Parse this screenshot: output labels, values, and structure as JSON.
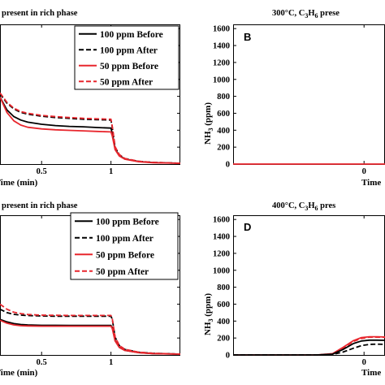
{
  "chart_data": [
    {
      "panel": "top-left",
      "type": "line",
      "title": "present in rich phase",
      "xlabel": "Time (min)",
      "x_ticks": [
        "0.5",
        "1"
      ],
      "xlim": [
        0.2,
        1.5
      ],
      "ylim": [
        0,
        1650
      ],
      "legend": {
        "position": "top-right"
      },
      "series": [
        {
          "name": "100 ppm Before",
          "color": "#000000",
          "dash": "solid",
          "x": [
            0.2,
            0.25,
            0.3,
            0.35,
            0.4,
            0.5,
            0.6,
            0.7,
            0.8,
            0.9,
            1.0,
            1.01,
            1.03,
            1.06,
            1.1,
            1.2,
            1.3,
            1.5
          ],
          "y": [
            790,
            640,
            560,
            520,
            495,
            470,
            455,
            445,
            440,
            432,
            425,
            360,
            180,
            100,
            60,
            30,
            18,
            10
          ]
        },
        {
          "name": "100 ppm After",
          "color": "#000000",
          "dash": "dashed",
          "x": [
            0.2,
            0.25,
            0.3,
            0.35,
            0.4,
            0.5,
            0.6,
            0.7,
            0.8,
            0.9,
            1.0,
            1.01,
            1.03,
            1.06,
            1.1,
            1.2,
            1.3,
            1.5
          ],
          "y": [
            830,
            720,
            650,
            610,
            590,
            565,
            550,
            540,
            530,
            525,
            520,
            430,
            200,
            110,
            65,
            32,
            20,
            10
          ]
        },
        {
          "name": "50 ppm Before",
          "color": "#e8262d",
          "dash": "solid",
          "x": [
            0.2,
            0.25,
            0.3,
            0.35,
            0.4,
            0.5,
            0.6,
            0.7,
            0.8,
            0.9,
            1.0,
            1.01,
            1.03,
            1.06,
            1.1,
            1.2,
            1.3,
            1.5
          ],
          "y": [
            790,
            610,
            510,
            460,
            435,
            415,
            405,
            398,
            392,
            386,
            380,
            330,
            170,
            95,
            58,
            28,
            16,
            10
          ]
        },
        {
          "name": "50 ppm After",
          "color": "#e8262d",
          "dash": "dashed",
          "x": [
            0.2,
            0.25,
            0.3,
            0.35,
            0.4,
            0.5,
            0.6,
            0.7,
            0.8,
            0.9,
            1.0,
            1.01,
            1.03,
            1.06,
            1.1,
            1.2,
            1.3,
            1.5
          ],
          "y": [
            840,
            730,
            660,
            620,
            600,
            575,
            560,
            550,
            540,
            534,
            530,
            440,
            205,
            112,
            66,
            33,
            20,
            10
          ]
        }
      ]
    },
    {
      "panel": "top-right",
      "type": "line",
      "title": "300°C, C3H6 prese",
      "title_parts": [
        "300°C, C",
        "3",
        "H",
        "6",
        " prese"
      ],
      "letter": "B",
      "ylabel": "NH3 (ppm)",
      "ylabel_parts": [
        "NH",
        "3",
        " (ppm)"
      ],
      "xlabel": "Time",
      "x_ticks": [
        "0"
      ],
      "y_ticks": [
        "0",
        "200",
        "400",
        "600",
        "800",
        "1000",
        "1200",
        "1400",
        "1600"
      ],
      "xlim": [
        -0.5,
        0.08
      ],
      "ylim": [
        0,
        1650
      ],
      "series": [
        {
          "color": "#e8262d",
          "dash": "solid",
          "x": [
            -0.5,
            0.08
          ],
          "y": [
            0,
            0
          ]
        }
      ]
    },
    {
      "panel": "bottom-left",
      "type": "line",
      "title": "present in rich phase",
      "xlabel": "Time (min)",
      "x_ticks": [
        "0.5",
        "1"
      ],
      "xlim": [
        0.2,
        1.5
      ],
      "ylim": [
        0,
        1650
      ],
      "legend": {
        "position": "top-right"
      },
      "series": [
        {
          "name": "100 ppm Before",
          "color": "#000000",
          "dash": "solid",
          "x": [
            0.2,
            0.25,
            0.3,
            0.35,
            0.4,
            0.5,
            0.6,
            0.7,
            0.8,
            0.9,
            1.0,
            1.01,
            1.03,
            1.06,
            1.1,
            1.2,
            1.3,
            1.5
          ],
          "y": [
            420,
            390,
            370,
            360,
            355,
            350,
            350,
            348,
            348,
            348,
            348,
            320,
            170,
            90,
            55,
            28,
            16,
            10
          ]
        },
        {
          "name": "100 ppm After",
          "color": "#000000",
          "dash": "dashed",
          "x": [
            0.2,
            0.25,
            0.3,
            0.35,
            0.4,
            0.5,
            0.6,
            0.7,
            0.8,
            0.9,
            1.0,
            1.01,
            1.03,
            1.06,
            1.1,
            1.2,
            1.3,
            1.5
          ],
          "y": [
            540,
            500,
            480,
            470,
            465,
            460,
            458,
            458,
            458,
            458,
            458,
            420,
            210,
            110,
            65,
            32,
            20,
            10
          ]
        },
        {
          "name": "50 ppm Before",
          "color": "#e8262d",
          "dash": "solid",
          "x": [
            0.2,
            0.25,
            0.3,
            0.35,
            0.4,
            0.5,
            0.6,
            0.7,
            0.8,
            0.9,
            1.0,
            1.01,
            1.03,
            1.06,
            1.1,
            1.2,
            1.3,
            1.5
          ],
          "y": [
            410,
            375,
            355,
            345,
            342,
            340,
            340,
            340,
            340,
            340,
            340,
            310,
            165,
            88,
            54,
            27,
            16,
            10
          ]
        },
        {
          "name": "50 ppm After",
          "color": "#e8262d",
          "dash": "dashed",
          "x": [
            0.2,
            0.25,
            0.3,
            0.35,
            0.4,
            0.5,
            0.6,
            0.7,
            0.8,
            0.9,
            1.0,
            1.01,
            1.03,
            1.06,
            1.1,
            1.2,
            1.3,
            1.5
          ],
          "y": [
            600,
            540,
            505,
            488,
            478,
            470,
            468,
            466,
            466,
            466,
            466,
            425,
            212,
            112,
            66,
            33,
            20,
            10
          ]
        }
      ]
    },
    {
      "panel": "bottom-right",
      "type": "line",
      "title": "400°C, C3H6 pres",
      "title_parts": [
        "400°C, C",
        "3",
        "H",
        "6",
        " pres"
      ],
      "letter": "D",
      "ylabel": "NH3 (ppm)",
      "ylabel_parts": [
        "NH",
        "3",
        " (ppm)"
      ],
      "xlabel": "Time",
      "x_ticks": [
        "0"
      ],
      "y_ticks": [
        "0",
        "200",
        "400",
        "600",
        "800",
        "1000",
        "1200",
        "1400",
        "1600"
      ],
      "xlim": [
        -0.5,
        0.08
      ],
      "ylim": [
        0,
        1650
      ],
      "series": [
        {
          "color": "#e8262d",
          "dash": "solid",
          "x": [
            -0.5,
            -0.18,
            -0.12,
            -0.08,
            -0.04,
            -0.01,
            0.02,
            0.05,
            0.08
          ],
          "y": [
            0,
            0,
            15,
            90,
            170,
            205,
            215,
            215,
            212
          ]
        },
        {
          "color": "#e8262d",
          "dash": "dashed",
          "x": [
            -0.5,
            -0.18,
            -0.12,
            -0.08,
            -0.04,
            -0.01,
            0.02,
            0.05,
            0.08
          ],
          "y": [
            0,
            0,
            12,
            80,
            160,
            195,
            210,
            210,
            208
          ]
        },
        {
          "color": "#000000",
          "dash": "solid",
          "x": [
            -0.5,
            -0.18,
            -0.12,
            -0.08,
            -0.04,
            -0.01,
            0.02,
            0.05,
            0.08
          ],
          "y": [
            0,
            0,
            10,
            65,
            135,
            165,
            175,
            175,
            173
          ]
        },
        {
          "color": "#000000",
          "dash": "dashed",
          "x": [
            -0.5,
            -0.18,
            -0.12,
            -0.08,
            -0.04,
            -0.01,
            0.02,
            0.05,
            0.08
          ],
          "y": [
            0,
            0,
            6,
            35,
            80,
            110,
            125,
            128,
            126
          ]
        }
      ]
    }
  ]
}
